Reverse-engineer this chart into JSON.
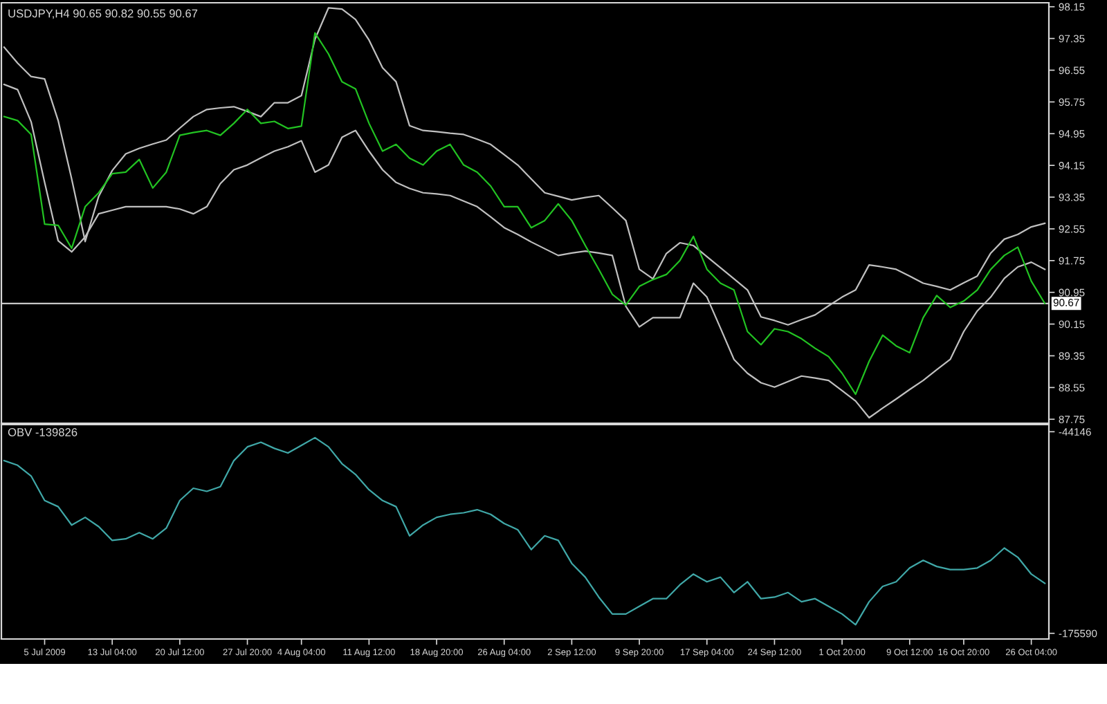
{
  "chart_data": [
    {
      "type": "line",
      "title": "USDJPY,H4 90.65 90.82 90.55 90.67",
      "categories": [
        null,
        null,
        null,
        null,
        null,
        null,
        null,
        null,
        null,
        null,
        null,
        null,
        null,
        null,
        null,
        null,
        null,
        null,
        null,
        null,
        null,
        null,
        null,
        null,
        null,
        null,
        null,
        null,
        null,
        null,
        null,
        null,
        null,
        null,
        null,
        null,
        null,
        null,
        null,
        null,
        null,
        null,
        null,
        null,
        null,
        null,
        null,
        null,
        null,
        null,
        null,
        null,
        null,
        null,
        null,
        null,
        null,
        null,
        null,
        null,
        null,
        null,
        null,
        null,
        null,
        null,
        null,
        null,
        null,
        null,
        null,
        null,
        null,
        null,
        null,
        null,
        null,
        null
      ],
      "ylim": [
        87.65,
        98.25
      ],
      "yticks": [
        98.15,
        97.35,
        96.55,
        95.75,
        94.95,
        94.15,
        93.35,
        92.55,
        91.75,
        90.95,
        90.15,
        89.35,
        88.55,
        87.75
      ],
      "tick_labels": "y",
      "ref_lines": [
        {
          "axis": "y",
          "value": 90.67,
          "label": "90.67",
          "color": "#c8c8c8"
        }
      ],
      "series": [
        {
          "color": "#c0c0c0",
          "values": [
            97.13,
            96.73,
            96.39,
            96.33,
            95.28,
            93.81,
            92.23,
            93.37,
            94.02,
            94.44,
            94.58,
            94.69,
            94.79,
            95.09,
            95.38,
            95.56,
            95.6,
            95.63,
            95.51,
            95.38,
            95.73,
            95.73,
            95.91,
            97.33,
            98.12,
            98.09,
            97.83,
            97.31,
            96.61,
            96.26,
            95.15,
            95.03,
            95.0,
            94.96,
            94.93,
            94.81,
            94.68,
            94.42,
            94.16,
            93.81,
            93.46,
            93.37,
            93.28,
            93.34,
            93.39,
            93.08,
            92.76,
            91.53,
            91.29,
            91.93,
            92.2,
            92.13,
            91.85,
            91.57,
            91.29,
            91.01,
            90.33,
            90.24,
            90.13,
            90.26,
            90.38,
            90.61,
            90.83,
            91.01,
            91.64,
            91.59,
            91.53,
            91.36,
            91.18,
            91.1,
            91.01,
            91.19,
            91.36,
            91.94,
            92.29,
            92.41,
            92.6,
            92.69
          ]
        },
        {
          "color": "#c0c0c0",
          "values": [
            96.19,
            96.06,
            95.25,
            93.72,
            92.25,
            91.97,
            92.35,
            92.93,
            93.02,
            93.11,
            93.11,
            93.11,
            93.11,
            93.05,
            92.93,
            93.11,
            93.69,
            94.04,
            94.16,
            94.34,
            94.51,
            94.62,
            94.77,
            93.98,
            94.16,
            94.86,
            95.03,
            94.51,
            94.04,
            93.72,
            93.57,
            93.46,
            93.43,
            93.39,
            93.25,
            93.11,
            92.85,
            92.58,
            92.41,
            92.22,
            92.05,
            91.88,
            91.94,
            91.99,
            91.94,
            91.88,
            90.6,
            90.08,
            90.31,
            90.31,
            90.31,
            91.18,
            90.83,
            90.05,
            89.26,
            88.91,
            88.67,
            88.56,
            88.7,
            88.84,
            88.79,
            88.73,
            88.47,
            88.21,
            87.79,
            88.03,
            88.26,
            88.5,
            88.73,
            89.0,
            89.26,
            89.96,
            90.48,
            90.83,
            91.3,
            91.59,
            91.71,
            91.53
          ]
        },
        {
          "color": "#22c322",
          "values": [
            95.38,
            95.28,
            94.93,
            92.67,
            92.64,
            92.06,
            93.11,
            93.46,
            93.94,
            93.98,
            94.3,
            93.58,
            93.98,
            94.91,
            94.98,
            95.03,
            94.91,
            95.21,
            95.56,
            95.21,
            95.26,
            95.08,
            95.14,
            97.49,
            96.96,
            96.26,
            96.08,
            95.21,
            94.51,
            94.68,
            94.33,
            94.16,
            94.51,
            94.68,
            94.16,
            93.98,
            93.63,
            93.11,
            93.11,
            92.58,
            92.76,
            93.18,
            92.76,
            92.13,
            91.53,
            90.9,
            90.63,
            91.1,
            91.27,
            91.4,
            91.75,
            92.36,
            91.53,
            91.18,
            91.01,
            89.96,
            89.63,
            90.03,
            89.96,
            89.78,
            89.54,
            89.33,
            88.91,
            88.38,
            89.21,
            89.87,
            89.6,
            89.43,
            90.31,
            90.87,
            90.57,
            90.73,
            91.01,
            91.53,
            91.88,
            92.09,
            91.23,
            90.67
          ]
        }
      ]
    },
    {
      "type": "line",
      "title": "OBV -139826",
      "categories": [
        null,
        null,
        null,
        "5 Jul 2009",
        null,
        null,
        null,
        null,
        "13 Jul 04:00",
        null,
        null,
        null,
        null,
        "20 Jul 12:00",
        null,
        null,
        null,
        null,
        "27 Jul 20:00",
        null,
        null,
        null,
        "4 Aug 04:00",
        null,
        null,
        null,
        null,
        "11 Aug 12:00",
        null,
        null,
        null,
        null,
        "18 Aug 20:00",
        null,
        null,
        null,
        null,
        "26 Aug 04:00",
        null,
        null,
        null,
        null,
        "2 Sep 12:00",
        null,
        null,
        null,
        null,
        "9 Sep 20:00",
        null,
        null,
        null,
        null,
        "17 Sep 04:00",
        null,
        null,
        null,
        null,
        "24 Sep 12:00",
        null,
        null,
        null,
        null,
        "1 Oct 20:00",
        null,
        null,
        null,
        null,
        "9 Oct 12:00",
        null,
        null,
        null,
        "16 Oct 20:00",
        null,
        null,
        null,
        null,
        "26 Oct 04:00",
        null
      ],
      "ylim": [
        -179300,
        -39500
      ],
      "yticks": [
        -44146,
        -175590
      ],
      "series": [
        {
          "color": "#40a8a8",
          "values": [
            -63000,
            -66000,
            -73000,
            -89000,
            -93000,
            -105000,
            -100000,
            -106000,
            -115000,
            -114000,
            -110000,
            -114000,
            -107000,
            -89000,
            -81000,
            -83000,
            -80000,
            -63000,
            -54000,
            -51000,
            -55000,
            -58000,
            -53000,
            -48000,
            -54000,
            -65000,
            -72000,
            -82000,
            -89000,
            -93000,
            -112000,
            -105000,
            -100000,
            -98000,
            -97000,
            -95000,
            -98000,
            -104000,
            -108000,
            -121000,
            -112000,
            -115000,
            -130000,
            -139000,
            -152000,
            -163000,
            -163000,
            -158000,
            -153000,
            -153000,
            -144000,
            -137000,
            -142000,
            -139000,
            -149000,
            -142000,
            -153000,
            -152000,
            -149000,
            -155000,
            -153000,
            -158000,
            -163000,
            -170000,
            -155000,
            -145000,
            -142000,
            -133000,
            -128000,
            -132000,
            -134000,
            -134000,
            -133000,
            -128000,
            -120000,
            -126000,
            -137000,
            -143000
          ]
        }
      ]
    }
  ]
}
